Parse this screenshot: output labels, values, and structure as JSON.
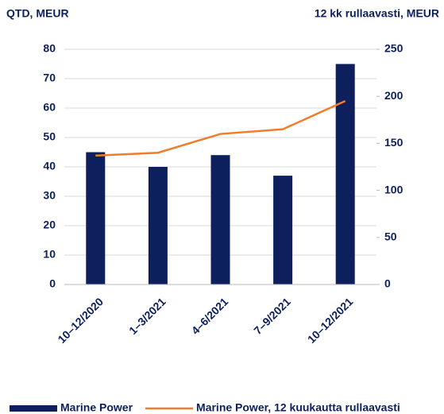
{
  "chart_data": {
    "type": "bar_line",
    "y_label": "QTD, MEUR",
    "y2_label": "12 kk rullaavasti, MEUR",
    "categories": [
      "10–12/2020",
      "1–3/2021",
      "4–6/2021",
      "7–9/2021",
      "10–12/2021"
    ],
    "series": [
      {
        "name": "Marine Power",
        "type": "bar",
        "color": "#0d1f5c",
        "values": [
          45,
          40,
          44,
          37,
          75
        ]
      },
      {
        "name": "Marine Power, 12 kuukautta rullaavasti",
        "type": "line",
        "axis": "y2",
        "color": "#f07d2c",
        "values": [
          137,
          140,
          160,
          165,
          195
        ]
      }
    ],
    "ylim": [
      0,
      80
    ],
    "yticks": [
      0,
      10,
      20,
      30,
      40,
      50,
      60,
      70,
      80
    ],
    "y2lim": [
      0,
      250
    ],
    "y2ticks": [
      0,
      50,
      100,
      150,
      200,
      250
    ],
    "grid": true,
    "legend": "bottom"
  }
}
